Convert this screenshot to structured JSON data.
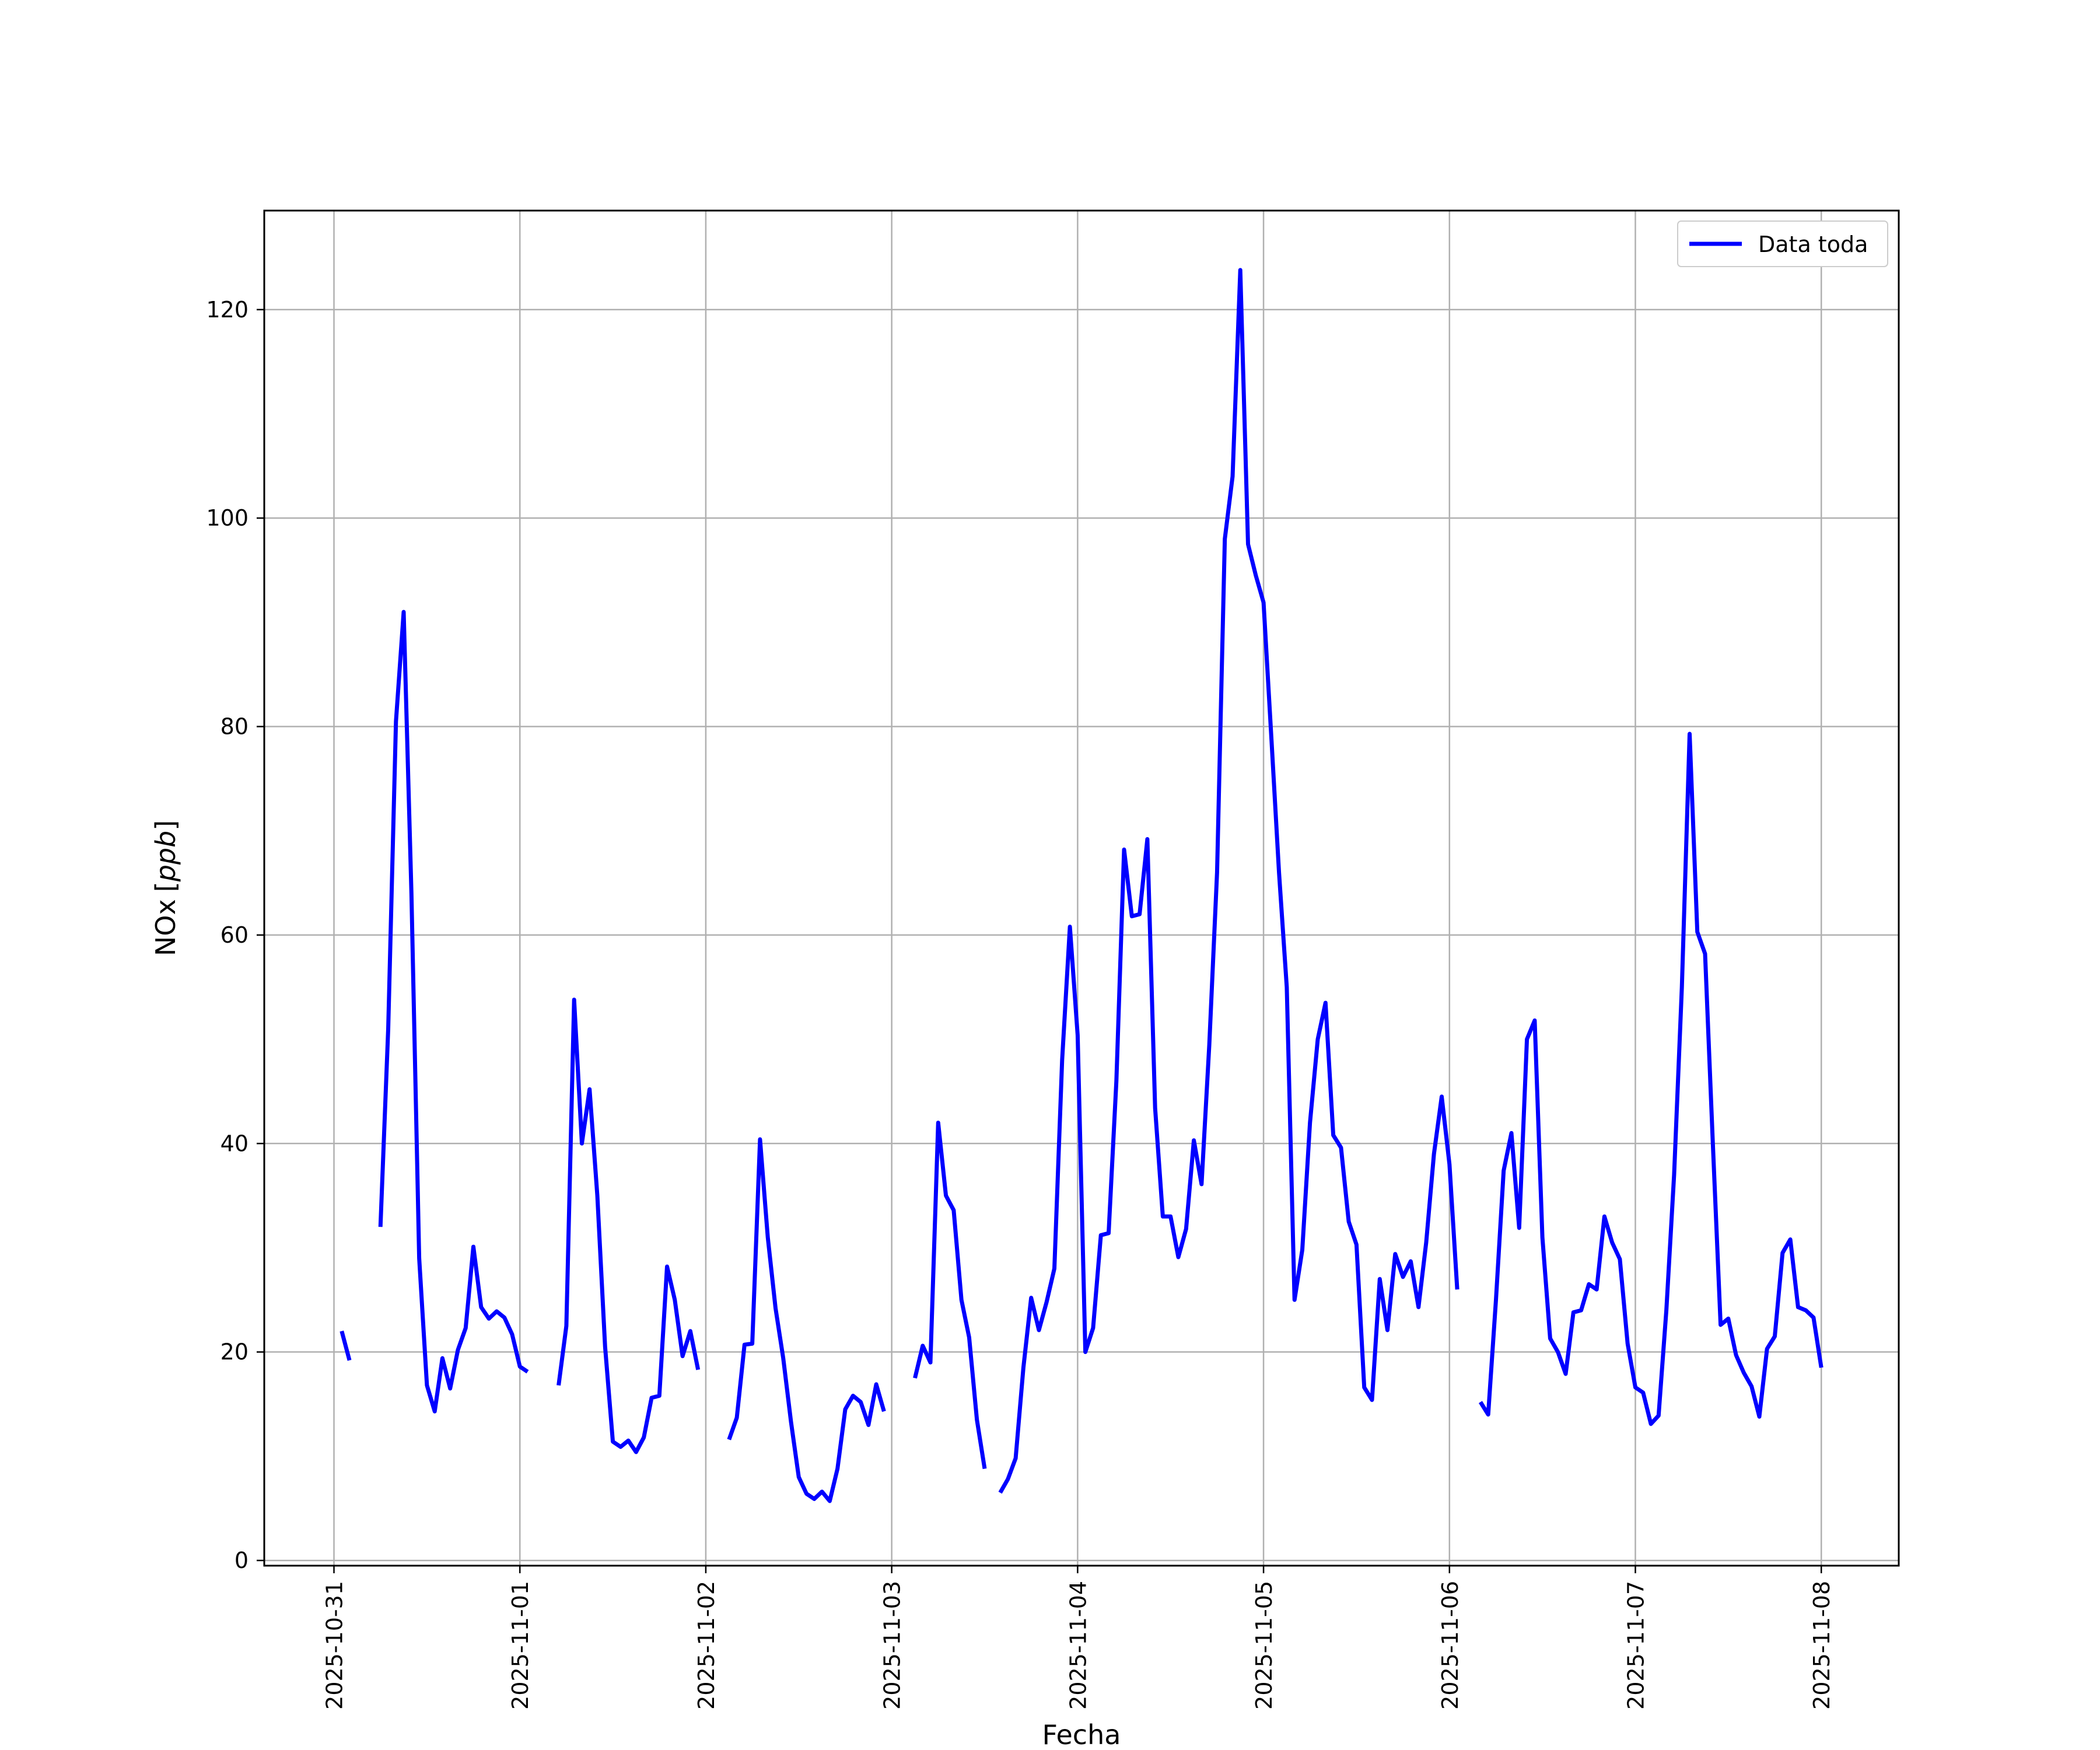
{
  "chart_data": {
    "type": "line",
    "title": "",
    "xlabel": "Fecha",
    "ylabel": "NOx [ppb]",
    "ylabel_main": "NOx",
    "ylabel_unit": "ppb",
    "xlim": [
      "2025-10-30T15:00",
      "2025-11-08T10:00"
    ],
    "ylim": [
      -0.5,
      129.5
    ],
    "yticks": [
      0,
      20,
      40,
      60,
      80,
      100,
      120
    ],
    "xticks": [
      "2025-10-31",
      "2025-11-01",
      "2025-11-02",
      "2025-11-03",
      "2025-11-04",
      "2025-11-05",
      "2025-11-06",
      "2025-11-07",
      "2025-11-08"
    ],
    "grid": true,
    "legend": {
      "position": "top-right",
      "entries": [
        "Data toda"
      ]
    },
    "series": [
      {
        "name": "Data toda",
        "color": "#0000ff",
        "x": [
          "2025-10-31T01:00",
          "2025-10-31T02:00",
          null,
          "2025-10-31T06:00",
          "2025-10-31T07:00",
          "2025-10-31T08:00",
          "2025-10-31T09:00",
          "2025-10-31T10:00",
          "2025-10-31T11:00",
          "2025-10-31T12:00",
          "2025-10-31T13:00",
          "2025-10-31T14:00",
          "2025-10-31T15:00",
          "2025-10-31T16:00",
          "2025-10-31T17:00",
          "2025-10-31T18:00",
          "2025-10-31T19:00",
          "2025-10-31T20:00",
          "2025-10-31T21:00",
          "2025-10-31T22:00",
          "2025-10-31T23:00",
          "2025-11-01T00:00",
          "2025-11-01T01:00",
          null,
          "2025-11-01T05:00",
          "2025-11-01T06:00",
          "2025-11-01T07:00",
          "2025-11-01T08:00",
          "2025-11-01T09:00",
          "2025-11-01T10:00",
          "2025-11-01T11:00",
          "2025-11-01T12:00",
          "2025-11-01T13:00",
          "2025-11-01T14:00",
          "2025-11-01T15:00",
          "2025-11-01T16:00",
          "2025-11-01T17:00",
          "2025-11-01T18:00",
          "2025-11-01T19:00",
          "2025-11-01T20:00",
          "2025-11-01T21:00",
          "2025-11-01T22:00",
          "2025-11-01T23:00",
          null,
          "2025-11-02T03:00",
          "2025-11-02T04:00",
          "2025-11-02T05:00",
          "2025-11-02T06:00",
          "2025-11-02T07:00",
          "2025-11-02T08:00",
          "2025-11-02T09:00",
          "2025-11-02T10:00",
          "2025-11-02T11:00",
          "2025-11-02T12:00",
          "2025-11-02T13:00",
          "2025-11-02T14:00",
          "2025-11-02T15:00",
          "2025-11-02T16:00",
          "2025-11-02T17:00",
          "2025-11-02T18:00",
          "2025-11-02T19:00",
          "2025-11-02T20:00",
          "2025-11-02T21:00",
          "2025-11-02T22:00",
          "2025-11-02T23:00",
          null,
          "2025-11-03T03:00",
          "2025-11-03T04:00",
          "2025-11-03T05:00",
          "2025-11-03T06:00",
          "2025-11-03T07:00",
          "2025-11-03T08:00",
          "2025-11-03T09:00",
          "2025-11-03T10:00",
          "2025-11-03T11:00",
          "2025-11-03T12:00",
          null,
          "2025-11-03T14:00",
          "2025-11-03T15:00",
          "2025-11-03T16:00",
          "2025-11-03T17:00",
          "2025-11-03T18:00",
          "2025-11-03T19:00",
          "2025-11-03T20:00",
          "2025-11-03T21:00",
          "2025-11-03T22:00",
          "2025-11-03T23:00",
          "2025-11-04T00:00",
          "2025-11-04T01:00",
          "2025-11-04T02:00",
          "2025-11-04T03:00",
          "2025-11-04T04:00",
          "2025-11-04T05:00",
          "2025-11-04T06:00",
          "2025-11-04T07:00",
          "2025-11-04T08:00",
          "2025-11-04T09:00",
          "2025-11-04T10:00",
          "2025-11-04T11:00",
          "2025-11-04T12:00",
          "2025-11-04T13:00",
          "2025-11-04T14:00",
          "2025-11-04T15:00",
          "2025-11-04T16:00",
          "2025-11-04T17:00",
          "2025-11-04T18:00",
          "2025-11-04T19:00",
          "2025-11-04T20:00",
          "2025-11-04T21:00",
          "2025-11-04T22:00",
          "2025-11-04T23:00",
          "2025-11-05T00:00",
          "2025-11-05T01:00",
          "2025-11-05T02:00",
          "2025-11-05T03:00",
          "2025-11-05T04:00",
          "2025-11-05T05:00",
          "2025-11-05T06:00",
          "2025-11-05T07:00",
          "2025-11-05T08:00",
          "2025-11-05T09:00",
          "2025-11-05T10:00",
          "2025-11-05T11:00",
          "2025-11-05T12:00",
          "2025-11-05T13:00",
          "2025-11-05T14:00",
          "2025-11-05T15:00",
          "2025-11-05T16:00",
          "2025-11-05T17:00",
          "2025-11-05T18:00",
          "2025-11-05T19:00",
          "2025-11-05T20:00",
          "2025-11-05T21:00",
          "2025-11-05T22:00",
          "2025-11-05T23:00",
          "2025-11-06T00:00",
          "2025-11-06T01:00",
          null,
          "2025-11-06T04:00",
          "2025-11-06T05:00",
          "2025-11-06T06:00",
          "2025-11-06T07:00",
          "2025-11-06T08:00",
          "2025-11-06T09:00",
          "2025-11-06T10:00",
          "2025-11-06T11:00",
          "2025-11-06T12:00",
          "2025-11-06T13:00",
          "2025-11-06T14:00",
          "2025-11-06T15:00",
          "2025-11-06T16:00",
          "2025-11-06T17:00",
          "2025-11-06T18:00",
          "2025-11-06T19:00",
          "2025-11-06T20:00",
          "2025-11-06T21:00",
          "2025-11-06T22:00",
          "2025-11-06T23:00",
          "2025-11-07T00:00",
          "2025-11-07T01:00",
          "2025-11-07T02:00",
          "2025-11-07T03:00",
          "2025-11-07T04:00",
          "2025-11-07T05:00",
          "2025-11-07T06:00",
          "2025-11-07T07:00",
          "2025-11-07T08:00",
          "2025-11-07T09:00",
          "2025-11-07T10:00",
          "2025-11-07T11:00",
          "2025-11-07T12:00",
          "2025-11-07T13:00",
          "2025-11-07T14:00",
          "2025-11-07T15:00",
          "2025-11-07T16:00",
          "2025-11-07T17:00",
          "2025-11-07T18:00",
          "2025-11-07T19:00",
          "2025-11-07T20:00",
          "2025-11-07T21:00",
          "2025-11-07T22:00",
          "2025-11-07T23:00",
          "2025-11-08T00:00"
        ],
        "y": [
          22.0,
          19.2,
          null,
          32.0,
          51.0,
          80.5,
          91.0,
          64.0,
          29.0,
          16.8,
          14.3,
          19.4,
          16.5,
          20.2,
          22.3,
          30.1,
          24.3,
          23.2,
          23.9,
          23.3,
          21.7,
          18.6,
          18.1,
          null,
          16.8,
          22.5,
          53.8,
          40.0,
          45.2,
          35.0,
          20.5,
          11.4,
          10.9,
          11.5,
          10.4,
          11.8,
          15.6,
          15.8,
          28.2,
          25.0,
          19.6,
          22.0,
          18.3,
          null,
          11.6,
          13.7,
          20.7,
          20.8,
          40.4,
          31.0,
          24.2,
          19.4,
          13.3,
          8.0,
          6.4,
          5.9,
          6.6,
          5.7,
          8.8,
          14.5,
          15.8,
          15.2,
          13.0,
          16.9,
          14.3,
          null,
          17.5,
          20.6,
          19.0,
          42.0,
          35.0,
          33.6,
          25.0,
          21.4,
          13.5,
          8.8,
          null,
          6.5,
          7.8,
          9.8,
          18.5,
          25.2,
          22.1,
          24.8,
          28.0,
          48.0,
          60.8,
          50.4,
          20.0,
          22.3,
          31.2,
          31.4,
          46.0,
          68.2,
          61.8,
          62.0,
          69.2,
          43.4,
          33.0,
          33.0,
          29.1,
          31.8,
          40.3,
          36.1,
          49.5,
          66.0,
          98.0,
          104.0,
          123.8,
          97.5,
          94.5,
          91.9,
          79.0,
          66.0,
          55.0,
          25.0,
          29.8,
          42.0,
          50.0,
          53.5,
          40.8,
          39.6,
          32.5,
          30.3,
          16.6,
          15.4,
          27.0,
          22.1,
          29.4,
          27.2,
          28.7,
          24.3,
          30.5,
          39.0,
          44.5,
          38.0,
          26.0,
          null,
          15.2,
          14.0,
          25.0,
          37.4,
          41.0,
          31.9,
          50.0,
          51.8,
          31.0,
          21.3,
          20.0,
          17.9,
          23.8,
          24.0,
          26.5,
          26.0,
          33.0,
          30.5,
          28.9,
          20.8,
          16.6,
          16.1,
          13.1,
          13.9,
          24.0,
          37.0,
          55.0,
          79.3,
          60.3,
          58.2,
          40.0,
          22.6,
          23.2,
          19.7,
          18.0,
          16.7,
          13.8,
          20.3,
          21.5,
          29.5,
          30.8,
          24.3,
          24.0,
          23.3,
          18.5
        ]
      }
    ]
  }
}
